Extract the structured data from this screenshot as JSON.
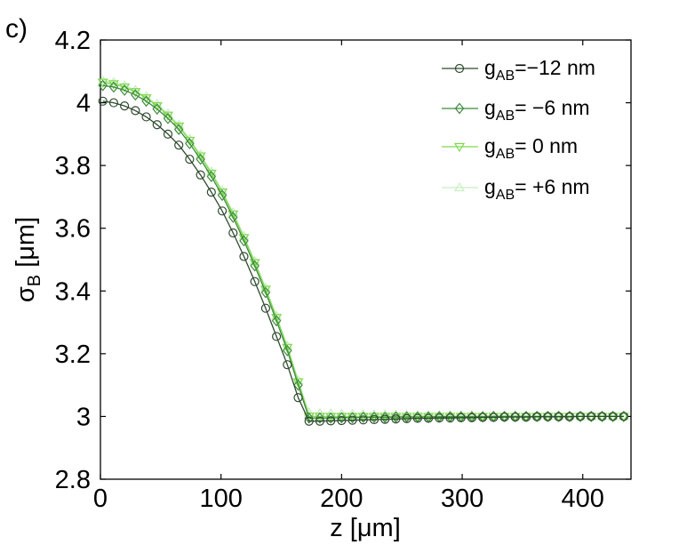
{
  "panel_label": "c)",
  "chart_data": {
    "type": "line",
    "xlabel": "z [μm]",
    "ylabel_main": "σ",
    "ylabel_sub": "B",
    "ylabel_unit": " [μm]",
    "xlim": [
      0,
      440
    ],
    "ylim": [
      2.8,
      4.2
    ],
    "x_ticks": [
      0,
      100,
      200,
      300,
      400
    ],
    "y_ticks": [
      2.8,
      3,
      3.2,
      3.4,
      3.6,
      3.8,
      4,
      4.2
    ],
    "x_tick_labels": [
      "0",
      "100",
      "200",
      "300",
      "400"
    ],
    "y_tick_labels": [
      "2.8",
      "3",
      "3.2",
      "3.4",
      "3.6",
      "3.8",
      "4",
      "4.2"
    ],
    "legend_placement": "top-right",
    "grid": false,
    "x": [
      2,
      11,
      20,
      29,
      38,
      47,
      56,
      65,
      74,
      83,
      92,
      101,
      110,
      119,
      128,
      137,
      146,
      155,
      164,
      173,
      182,
      191,
      200,
      209,
      218,
      227,
      236,
      245,
      254,
      263,
      272,
      281,
      290,
      299,
      308,
      317,
      326,
      335,
      344,
      353,
      362,
      371,
      380,
      389,
      398,
      407,
      416,
      425,
      434
    ],
    "series": [
      {
        "legend_main": "g",
        "legend_sub": "AB",
        "legend_value": "=−12 nm",
        "color": "#2f4a2f",
        "marker": "circle",
        "values": [
          4.005,
          4.0,
          3.99,
          3.975,
          3.955,
          3.93,
          3.9,
          3.865,
          3.82,
          3.77,
          3.715,
          3.655,
          3.585,
          3.51,
          3.43,
          3.345,
          3.255,
          3.165,
          3.06,
          2.985,
          2.985,
          2.986,
          2.987,
          2.988,
          2.989,
          2.99,
          2.991,
          2.992,
          2.993,
          2.994,
          2.994,
          2.995,
          2.995,
          2.996,
          2.996,
          2.997,
          2.997,
          2.998,
          2.998,
          2.998,
          2.999,
          2.999,
          2.999,
          2.999,
          3.0,
          3.0,
          3.0,
          3.0,
          3.0
        ]
      },
      {
        "legend_main": "g",
        "legend_sub": "AB",
        "legend_value": "=  −6 nm",
        "color": "#3f8a3f",
        "marker": "diamond",
        "values": [
          4.055,
          4.05,
          4.04,
          4.025,
          4.005,
          3.98,
          3.95,
          3.915,
          3.87,
          3.82,
          3.765,
          3.705,
          3.635,
          3.56,
          3.48,
          3.395,
          3.305,
          3.21,
          3.1,
          2.995,
          2.995,
          2.995,
          2.996,
          2.996,
          2.997,
          2.997,
          2.997,
          2.998,
          2.998,
          2.998,
          2.998,
          2.999,
          2.999,
          2.999,
          2.999,
          2.999,
          3.0,
          3.0,
          3.0,
          3.0,
          3.0,
          3.0,
          3.0,
          3.0,
          3.0,
          3.0,
          3.0,
          3.0,
          3.0
        ]
      },
      {
        "legend_main": "g",
        "legend_sub": "AB",
        "legend_value": "=   0 nm",
        "color": "#7fd84f",
        "marker": "triangle-down",
        "values": [
          4.065,
          4.06,
          4.05,
          4.035,
          4.015,
          3.99,
          3.96,
          3.925,
          3.88,
          3.83,
          3.775,
          3.715,
          3.645,
          3.57,
          3.49,
          3.405,
          3.315,
          3.22,
          3.11,
          3.0,
          3.0,
          3.0,
          3.0,
          3.0,
          3.0,
          3.0,
          3.0,
          3.0,
          3.0,
          3.0,
          3.0,
          3.0,
          3.0,
          3.0,
          3.0,
          3.0,
          3.0,
          3.0,
          3.0,
          3.0,
          3.0,
          3.0,
          3.0,
          3.0,
          3.0,
          3.0,
          3.0,
          3.0,
          3.0
        ]
      },
      {
        "legend_main": "g",
        "legend_sub": "AB",
        "legend_value": "= +6 nm",
        "color": "#c8eec0",
        "marker": "triangle-up",
        "values": [
          4.07,
          4.065,
          4.055,
          4.04,
          4.02,
          3.995,
          3.965,
          3.93,
          3.885,
          3.835,
          3.78,
          3.72,
          3.65,
          3.575,
          3.495,
          3.41,
          3.32,
          3.225,
          3.115,
          3.012,
          3.01,
          3.009,
          3.008,
          3.007,
          3.007,
          3.006,
          3.006,
          3.005,
          3.005,
          3.004,
          3.004,
          3.004,
          3.003,
          3.003,
          3.003,
          3.002,
          3.002,
          3.002,
          3.002,
          3.001,
          3.001,
          3.001,
          3.001,
          3.001,
          3.0,
          3.0,
          3.0,
          3.0,
          3.0
        ]
      }
    ]
  }
}
